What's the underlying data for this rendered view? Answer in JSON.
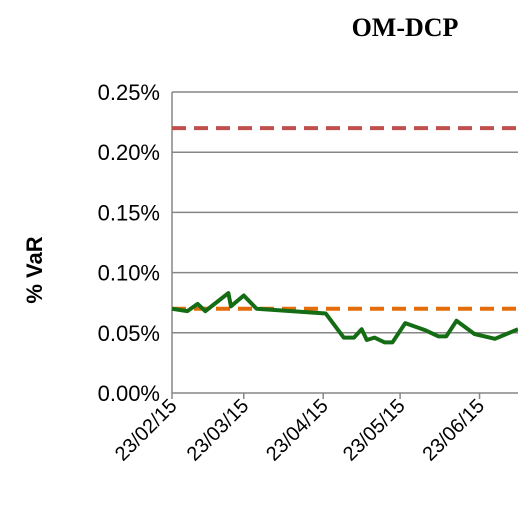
{
  "chart_data": {
    "type": "line",
    "title": "OM-DCP",
    "y_label": "% VaR",
    "xlim": [
      "23/02/15",
      "08/07/15"
    ],
    "xticks": [
      "23/02/15",
      "23/03/15",
      "23/04/15",
      "23/05/15",
      "23/06/15"
    ],
    "ylim": [
      0,
      0.25
    ],
    "yticks": [
      {
        "value": 0,
        "label": "0.00%"
      },
      {
        "value": 0.05,
        "label": "0.05%"
      },
      {
        "value": 0.1,
        "label": "0.10%"
      },
      {
        "value": 0.15,
        "label": "0.15%"
      },
      {
        "value": 0.2,
        "label": "0.20%"
      },
      {
        "value": 0.25,
        "label": "0.25%"
      }
    ],
    "grid": true,
    "series": [
      {
        "color": "#c0504d",
        "dash": true,
        "x": [
          "23/02/15",
          "08/07/15"
        ],
        "values": [
          0.22,
          0.22
        ]
      },
      {
        "color": "#e46c0a",
        "dash": true,
        "x": [
          "23/02/15",
          "08/07/15"
        ],
        "values": [
          0.07,
          0.07
        ]
      },
      {
        "color": "#146c14",
        "dash": false,
        "x": [
          "23/02/15",
          "01/03/15",
          "05/03/15",
          "08/03/15",
          "17/03/15",
          "18/03/15",
          "23/03/15",
          "28/03/15",
          "24/04/15",
          "01/05/15",
          "05/05/15",
          "08/05/15",
          "10/05/15",
          "13/05/15",
          "17/05/15",
          "20/05/15",
          "25/05/15",
          "02/06/15",
          "07/06/15",
          "10/06/15",
          "14/06/15",
          "21/06/15",
          "29/06/15",
          "08/07/15"
        ],
        "values": [
          0.07,
          0.068,
          0.074,
          0.068,
          0.083,
          0.072,
          0.081,
          0.07,
          0.066,
          0.046,
          0.046,
          0.053,
          0.044,
          0.046,
          0.042,
          0.042,
          0.058,
          0.052,
          0.047,
          0.047,
          0.06,
          0.049,
          0.045,
          0.053
        ]
      }
    ]
  }
}
